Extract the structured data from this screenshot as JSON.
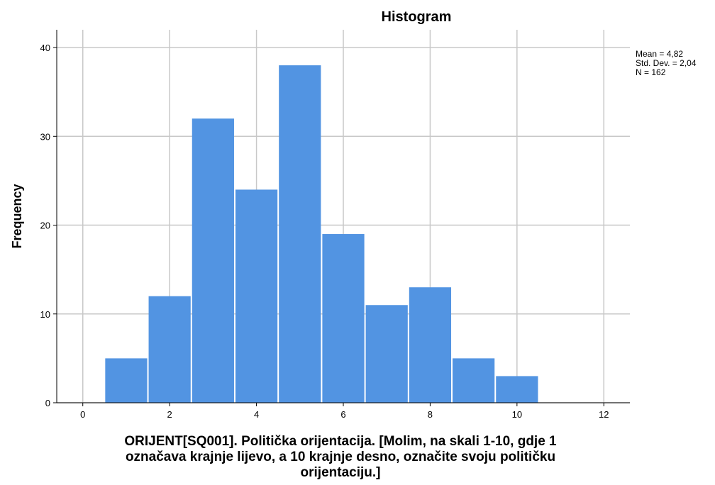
{
  "chart_data": {
    "type": "bar",
    "title": "Histogram",
    "xlabel": "ORIJENT[SQ001]. Politička orijentacija.  [Molim, na skali 1-10, gdje 1 označava krajnje lijevo, a 10 krajnje desno, označite svoju političku orijentaciju.]",
    "xlabel_lines": [
      "ORIJENT[SQ001]. Politička orijentacija.  [Molim, na skali 1-10, gdje 1",
      "označava krajnje lijevo, a 10 krajnje desno, označite svoju političku",
      "orijentaciju.]"
    ],
    "ylabel": "Frequency",
    "categories": [
      1,
      2,
      3,
      4,
      5,
      6,
      7,
      8,
      9,
      10
    ],
    "values": [
      5,
      12,
      32,
      24,
      38,
      19,
      11,
      13,
      5,
      3
    ],
    "xlim": [
      -0.6,
      12.6
    ],
    "ylim": [
      0,
      42
    ],
    "xticks": [
      0,
      2,
      4,
      6,
      8,
      10,
      12
    ],
    "yticks": [
      0,
      10,
      20,
      30,
      40
    ],
    "grid": true,
    "stats": [
      "Mean = 4,82",
      "Std. Dev. = 2,04",
      "N = 162"
    ],
    "colors": {
      "bar": "#5294e2",
      "grid": "#c8c8c8",
      "axis": "#000000"
    }
  }
}
